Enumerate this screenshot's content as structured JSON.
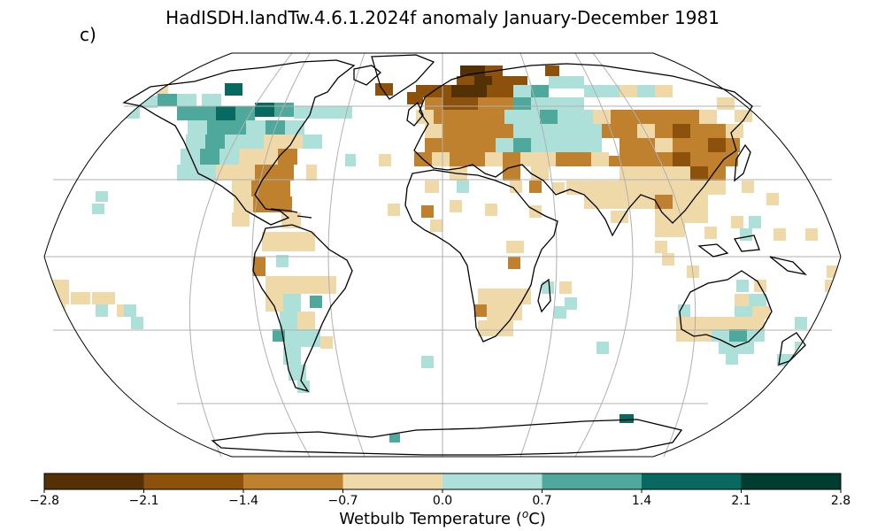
{
  "title": "HadISDH.landTw.4.6.1.2024f anomaly January-December 1981",
  "panel_label": "c)",
  "colorbar": {
    "label_text": "Wetbulb Temperature (",
    "label_sup": "o",
    "label_end": "C)",
    "ticks": [
      "−2.8",
      "−2.1",
      "−1.4",
      "−0.7",
      "0.0",
      "0.7",
      "1.4",
      "2.1",
      "2.8"
    ],
    "colors": [
      "#543005",
      "#8c510a",
      "#bf812d",
      "#f0d9a8",
      "#ade0d8",
      "#4fa89c",
      "#07695f",
      "#003c30"
    ]
  },
  "colors": {
    "land_outline": "#000000",
    "graticule": "#b0b0b0",
    "ocean": "#ffffff"
  },
  "projection": "Robinson"
}
